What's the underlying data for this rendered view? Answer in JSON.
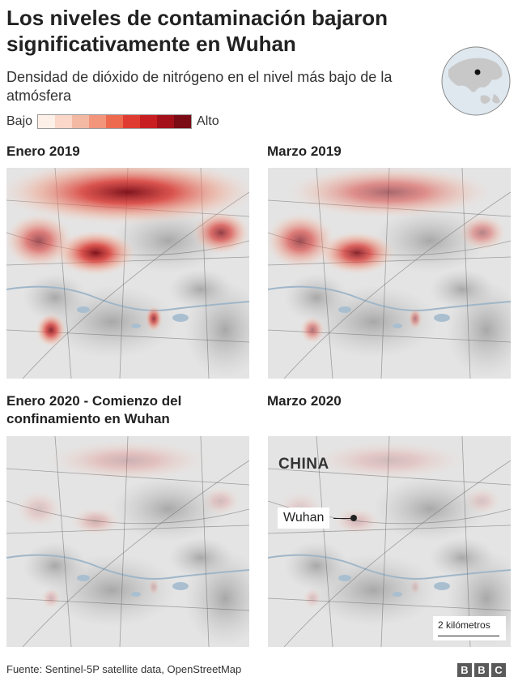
{
  "title": "Los niveles de contaminación bajaron significativamente en Wuhan",
  "subtitle": "Densidad de dióxido de nitrógeno en el nivel más bajo de la atmósfera",
  "legend": {
    "low_label": "Bajo",
    "high_label": "Alto",
    "colors": [
      "#fdf0e8",
      "#fad7c8",
      "#f3b9a2",
      "#f2957a",
      "#ee6a4f",
      "#e03b30",
      "#c81e22",
      "#a4101a",
      "#7a0a14"
    ]
  },
  "panels": [
    {
      "title": "Enero 2019",
      "intensity": 1.0
    },
    {
      "title": "Marzo 2019",
      "intensity": 0.6
    },
    {
      "title": "Enero 2020 - Comienzo del confinamiento en Wuhan",
      "intensity": 0.25
    },
    {
      "title": "Marzo 2020",
      "intensity": 0.2
    }
  ],
  "map_labels": {
    "country": "CHINA",
    "city": "Wuhan",
    "scale": "2 kilómetros"
  },
  "footer": {
    "source": "Fuente: Sentinel-5P satellite data, OpenStreetMap",
    "logo": [
      "B",
      "B",
      "C"
    ]
  },
  "icons": {
    "globe": "globe-locator-icon",
    "city_marker": "city-dot-icon"
  }
}
